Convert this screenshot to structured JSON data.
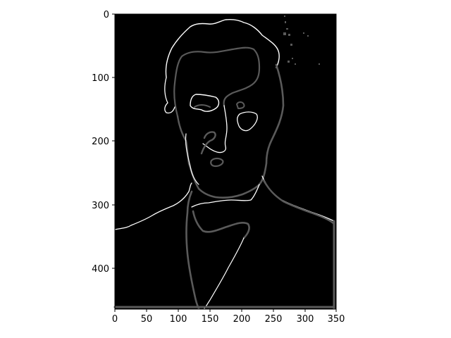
{
  "figure": {
    "background": "#ffffff",
    "image_background": "#000000",
    "edge_color_bright": "#ffffff",
    "edge_color_dim": "#5a5a5a"
  },
  "image": {
    "description_type": "edge-detected grayscale portrait",
    "x_range": [
      0,
      350
    ],
    "y_range": [
      0,
      465
    ],
    "x_ticks": [
      "0",
      "50",
      "100",
      "150",
      "200",
      "250",
      "300",
      "350"
    ],
    "y_ticks": [
      "0",
      "100",
      "200",
      "300",
      "400"
    ]
  }
}
